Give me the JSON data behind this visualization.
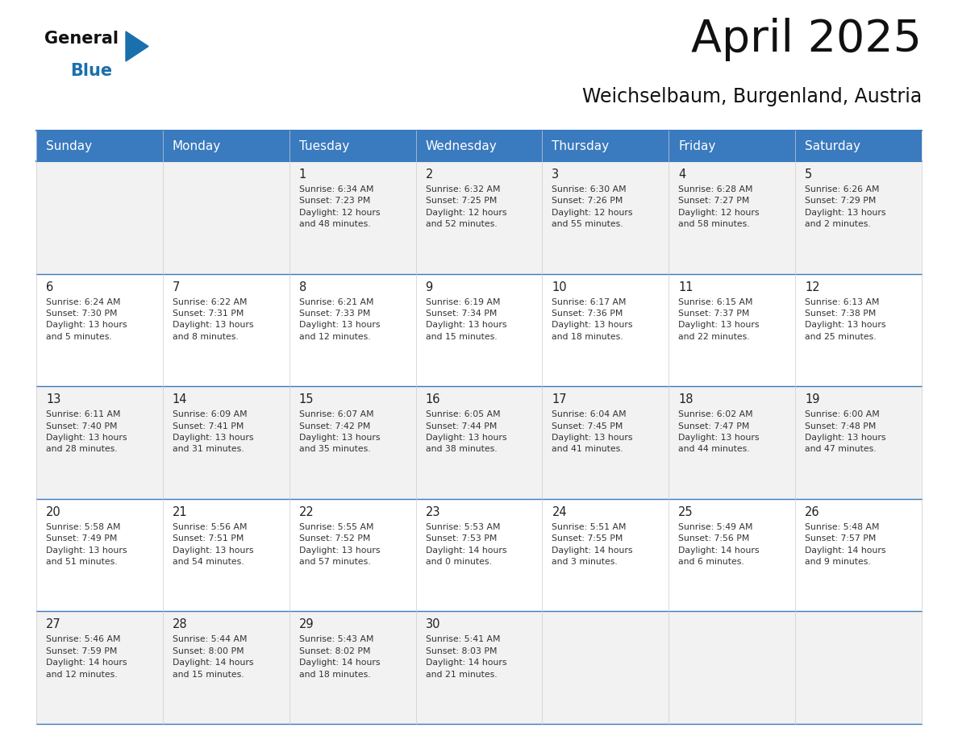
{
  "title": "April 2025",
  "subtitle": "Weichselbaum, Burgenland, Austria",
  "header_color": "#3a7abf",
  "header_text_color": "#ffffff",
  "row_bg_even": "#f2f2f2",
  "row_bg_odd": "#ffffff",
  "border_color": "#3a7abf",
  "cell_text_color": "#333333",
  "day_num_color": "#222222",
  "days_of_week": [
    "Sunday",
    "Monday",
    "Tuesday",
    "Wednesday",
    "Thursday",
    "Friday",
    "Saturday"
  ],
  "weeks": [
    [
      {
        "day": "",
        "info": ""
      },
      {
        "day": "",
        "info": ""
      },
      {
        "day": "1",
        "info": "Sunrise: 6:34 AM\nSunset: 7:23 PM\nDaylight: 12 hours\nand 48 minutes."
      },
      {
        "day": "2",
        "info": "Sunrise: 6:32 AM\nSunset: 7:25 PM\nDaylight: 12 hours\nand 52 minutes."
      },
      {
        "day": "3",
        "info": "Sunrise: 6:30 AM\nSunset: 7:26 PM\nDaylight: 12 hours\nand 55 minutes."
      },
      {
        "day": "4",
        "info": "Sunrise: 6:28 AM\nSunset: 7:27 PM\nDaylight: 12 hours\nand 58 minutes."
      },
      {
        "day": "5",
        "info": "Sunrise: 6:26 AM\nSunset: 7:29 PM\nDaylight: 13 hours\nand 2 minutes."
      }
    ],
    [
      {
        "day": "6",
        "info": "Sunrise: 6:24 AM\nSunset: 7:30 PM\nDaylight: 13 hours\nand 5 minutes."
      },
      {
        "day": "7",
        "info": "Sunrise: 6:22 AM\nSunset: 7:31 PM\nDaylight: 13 hours\nand 8 minutes."
      },
      {
        "day": "8",
        "info": "Sunrise: 6:21 AM\nSunset: 7:33 PM\nDaylight: 13 hours\nand 12 minutes."
      },
      {
        "day": "9",
        "info": "Sunrise: 6:19 AM\nSunset: 7:34 PM\nDaylight: 13 hours\nand 15 minutes."
      },
      {
        "day": "10",
        "info": "Sunrise: 6:17 AM\nSunset: 7:36 PM\nDaylight: 13 hours\nand 18 minutes."
      },
      {
        "day": "11",
        "info": "Sunrise: 6:15 AM\nSunset: 7:37 PM\nDaylight: 13 hours\nand 22 minutes."
      },
      {
        "day": "12",
        "info": "Sunrise: 6:13 AM\nSunset: 7:38 PM\nDaylight: 13 hours\nand 25 minutes."
      }
    ],
    [
      {
        "day": "13",
        "info": "Sunrise: 6:11 AM\nSunset: 7:40 PM\nDaylight: 13 hours\nand 28 minutes."
      },
      {
        "day": "14",
        "info": "Sunrise: 6:09 AM\nSunset: 7:41 PM\nDaylight: 13 hours\nand 31 minutes."
      },
      {
        "day": "15",
        "info": "Sunrise: 6:07 AM\nSunset: 7:42 PM\nDaylight: 13 hours\nand 35 minutes."
      },
      {
        "day": "16",
        "info": "Sunrise: 6:05 AM\nSunset: 7:44 PM\nDaylight: 13 hours\nand 38 minutes."
      },
      {
        "day": "17",
        "info": "Sunrise: 6:04 AM\nSunset: 7:45 PM\nDaylight: 13 hours\nand 41 minutes."
      },
      {
        "day": "18",
        "info": "Sunrise: 6:02 AM\nSunset: 7:47 PM\nDaylight: 13 hours\nand 44 minutes."
      },
      {
        "day": "19",
        "info": "Sunrise: 6:00 AM\nSunset: 7:48 PM\nDaylight: 13 hours\nand 47 minutes."
      }
    ],
    [
      {
        "day": "20",
        "info": "Sunrise: 5:58 AM\nSunset: 7:49 PM\nDaylight: 13 hours\nand 51 minutes."
      },
      {
        "day": "21",
        "info": "Sunrise: 5:56 AM\nSunset: 7:51 PM\nDaylight: 13 hours\nand 54 minutes."
      },
      {
        "day": "22",
        "info": "Sunrise: 5:55 AM\nSunset: 7:52 PM\nDaylight: 13 hours\nand 57 minutes."
      },
      {
        "day": "23",
        "info": "Sunrise: 5:53 AM\nSunset: 7:53 PM\nDaylight: 14 hours\nand 0 minutes."
      },
      {
        "day": "24",
        "info": "Sunrise: 5:51 AM\nSunset: 7:55 PM\nDaylight: 14 hours\nand 3 minutes."
      },
      {
        "day": "25",
        "info": "Sunrise: 5:49 AM\nSunset: 7:56 PM\nDaylight: 14 hours\nand 6 minutes."
      },
      {
        "day": "26",
        "info": "Sunrise: 5:48 AM\nSunset: 7:57 PM\nDaylight: 14 hours\nand 9 minutes."
      }
    ],
    [
      {
        "day": "27",
        "info": "Sunrise: 5:46 AM\nSunset: 7:59 PM\nDaylight: 14 hours\nand 12 minutes."
      },
      {
        "day": "28",
        "info": "Sunrise: 5:44 AM\nSunset: 8:00 PM\nDaylight: 14 hours\nand 15 minutes."
      },
      {
        "day": "29",
        "info": "Sunrise: 5:43 AM\nSunset: 8:02 PM\nDaylight: 14 hours\nand 18 minutes."
      },
      {
        "day": "30",
        "info": "Sunrise: 5:41 AM\nSunset: 8:03 PM\nDaylight: 14 hours\nand 21 minutes."
      },
      {
        "day": "",
        "info": ""
      },
      {
        "day": "",
        "info": ""
      },
      {
        "day": "",
        "info": ""
      }
    ]
  ],
  "logo_general_color": "#111111",
  "logo_blue_color": "#1a6fad",
  "logo_triangle_color": "#1a6fad",
  "title_color": "#111111",
  "subtitle_color": "#111111"
}
